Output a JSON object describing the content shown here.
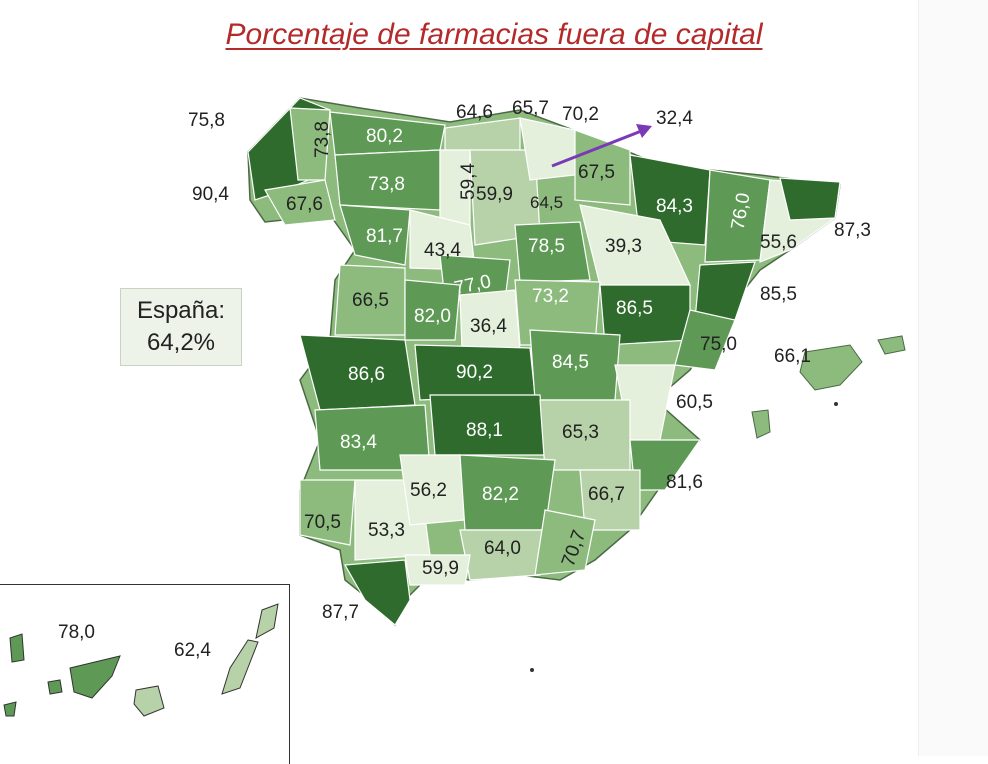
{
  "title": "Porcentaje de farmacias fuera de capital",
  "summary": {
    "label": "España:",
    "value": "64,2%"
  },
  "colors": {
    "very_light": "#e4efdc",
    "light": "#b7d2a8",
    "medium": "#8dbb7e",
    "dark": "#5e9a55",
    "darkest": "#2f6b2c",
    "arrow": "#7a3ab8",
    "title": "#b22a2a"
  },
  "provinces": [
    {
      "value": "75,8"
    },
    {
      "value": "73,8"
    },
    {
      "value": "80,2"
    },
    {
      "value": "64,6"
    },
    {
      "value": "65,7"
    },
    {
      "value": "70,2"
    },
    {
      "value": "32,4"
    },
    {
      "value": "90,4"
    },
    {
      "value": "67,6"
    },
    {
      "value": "73,8"
    },
    {
      "value": "59,4"
    },
    {
      "value": "59,9"
    },
    {
      "value": "64,5"
    },
    {
      "value": "67,5"
    },
    {
      "value": "84,3"
    },
    {
      "value": "76,0"
    },
    {
      "value": "87,3"
    },
    {
      "value": "81,7"
    },
    {
      "value": "43,4"
    },
    {
      "value": "78,5"
    },
    {
      "value": "39,3"
    },
    {
      "value": "55,6"
    },
    {
      "value": "77,0"
    },
    {
      "value": "66,5"
    },
    {
      "value": "82,0"
    },
    {
      "value": "36,4"
    },
    {
      "value": "73,2"
    },
    {
      "value": "86,5"
    },
    {
      "value": "85,5"
    },
    {
      "value": "75,0"
    },
    {
      "value": "66,1"
    },
    {
      "value": "86,6"
    },
    {
      "value": "90,2"
    },
    {
      "value": "84,5"
    },
    {
      "value": "60,5"
    },
    {
      "value": "83,4"
    },
    {
      "value": "88,1"
    },
    {
      "value": "65,3"
    },
    {
      "value": "56,2"
    },
    {
      "value": "82,2"
    },
    {
      "value": "81,6"
    },
    {
      "value": "70,5"
    },
    {
      "value": "53,3"
    },
    {
      "value": "66,7"
    },
    {
      "value": "64,0"
    },
    {
      "value": "70,7"
    },
    {
      "value": "59,9"
    },
    {
      "value": "87,7"
    },
    {
      "value": "78,0"
    },
    {
      "value": "62,4"
    }
  ]
}
